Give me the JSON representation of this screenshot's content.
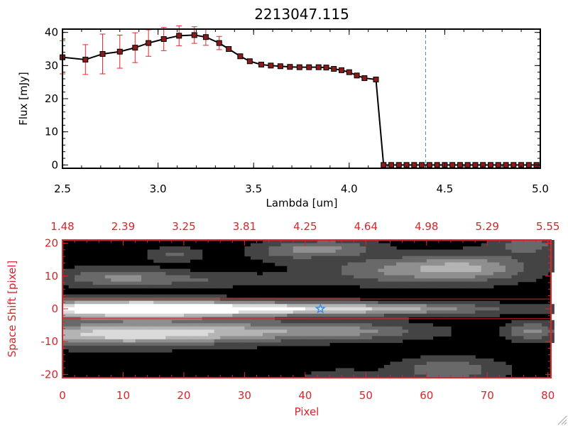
{
  "chart_data": [
    {
      "type": "line",
      "title": "2213047.115",
      "xlabel": "Lambda [um]",
      "ylabel": "Flux [mJy]",
      "xlim": [
        2.5,
        5.0
      ],
      "ylim": [
        -1,
        41
      ],
      "x_ticks": [
        2.5,
        3.0,
        3.5,
        4.0,
        4.5,
        5.0
      ],
      "x_tick_labels": [
        "2.5",
        "3.0",
        "3.5",
        "4.0",
        "4.5",
        "5.0"
      ],
      "y_ticks": [
        0,
        10,
        20,
        30,
        40
      ],
      "y_tick_labels": [
        "0",
        "10",
        "20",
        "30",
        "40"
      ],
      "marker_line_x": 4.4,
      "colors": {
        "line": "#000000",
        "marker": "#8b1a1a",
        "errorbar": "#e0272e",
        "vline": "#4a90d9"
      },
      "series": [
        {
          "x": [
            2.5,
            2.62,
            2.71,
            2.8,
            2.88,
            2.95,
            3.03,
            3.11,
            3.19,
            3.25,
            3.32,
            3.37,
            3.43,
            3.48,
            3.54,
            3.59,
            3.64,
            3.69,
            3.74,
            3.79,
            3.84,
            3.88,
            3.92,
            3.96,
            4.0,
            4.04,
            4.08,
            4.14,
            4.18,
            4.22,
            4.26,
            4.3,
            4.34,
            4.38,
            4.42,
            4.46,
            4.5,
            4.54,
            4.58,
            4.62,
            4.66,
            4.7,
            4.74,
            4.78,
            4.82,
            4.86,
            4.9,
            4.94,
            4.98
          ],
          "y": [
            32.5,
            31.8,
            33.5,
            34.2,
            35.4,
            36.8,
            38.0,
            39.0,
            39.2,
            38.6,
            36.8,
            35.0,
            32.8,
            31.3,
            30.3,
            30.0,
            29.8,
            29.6,
            29.5,
            29.5,
            29.5,
            29.4,
            29.0,
            28.6,
            28.0,
            27.0,
            26.2,
            25.8,
            0,
            0,
            0,
            0,
            0,
            0,
            0,
            0,
            0,
            0,
            0,
            0,
            0,
            0,
            0,
            0,
            0,
            0,
            0,
            0,
            0
          ],
          "yerr": [
            5,
            4.5,
            6,
            5,
            4.5,
            4,
            3.5,
            3.0,
            2.5,
            2.5,
            2.0,
            0,
            0,
            0,
            0,
            0,
            0,
            0,
            0,
            0,
            0,
            0,
            0,
            0,
            0,
            0,
            0,
            0,
            0,
            0,
            0,
            0,
            0,
            0,
            0,
            0,
            0,
            0,
            0,
            0,
            0,
            0,
            0,
            0,
            0,
            0,
            0,
            0,
            0
          ]
        }
      ]
    },
    {
      "type": "heatmap",
      "xlabel": "Pixel",
      "ylabel": "Space Shift [pixel]",
      "xlim": [
        0,
        80.5
      ],
      "ylim": [
        -21,
        21
      ],
      "x_ticks": [
        0,
        10,
        20,
        30,
        40,
        50,
        60,
        70,
        80
      ],
      "x_tick_labels": [
        "0",
        "10",
        "20",
        "30",
        "40",
        "50",
        "60",
        "70",
        "80"
      ],
      "top_ticks": [
        0,
        10,
        20,
        30,
        40,
        50,
        60,
        70,
        80
      ],
      "top_tick_labels": [
        "1.48",
        "2.39",
        "3.25",
        "3.81",
        "4.25",
        "4.64",
        "4.98",
        "5.29",
        "5.55"
      ],
      "y_ticks": [
        -20,
        -10,
        0,
        10,
        20
      ],
      "y_tick_labels": [
        "-20",
        "-10",
        "0",
        "10",
        "20"
      ],
      "aperture_lines_y": [
        3,
        -3
      ],
      "star_marker": {
        "x": 42.5,
        "y": 0,
        "color": "#3b8ee6"
      },
      "colors": {
        "axes": "#d9252b",
        "aperture": "#d9252b"
      },
      "sources": [
        {
          "x": 10,
          "y": 0,
          "sx": 14,
          "sy": 2.0,
          "amp": 1.0
        },
        {
          "x": 32,
          "y": 0,
          "sx": 22,
          "sy": 1.5,
          "amp": 0.55
        },
        {
          "x": 50,
          "y": 0,
          "sx": 16,
          "sy": 1.2,
          "amp": 0.35
        },
        {
          "x": 8,
          "y": -8,
          "sx": 14,
          "sy": 2.5,
          "amp": 0.7
        },
        {
          "x": 30,
          "y": -7,
          "sx": 16,
          "sy": 2.2,
          "amp": 0.45
        },
        {
          "x": 48,
          "y": -7,
          "sx": 8,
          "sy": 1.6,
          "amp": 0.25
        },
        {
          "x": 8,
          "y": 10,
          "sx": 7,
          "sy": 2.0,
          "amp": 0.38
        },
        {
          "x": 22,
          "y": 9,
          "sx": 10,
          "sy": 1.5,
          "amp": 0.22
        },
        {
          "x": 18,
          "y": 17,
          "sx": 3,
          "sy": 1.5,
          "amp": 0.3
        },
        {
          "x": 36,
          "y": 18,
          "sx": 4,
          "sy": 2.0,
          "amp": 0.28
        },
        {
          "x": 44,
          "y": 19,
          "sx": 5,
          "sy": 2.0,
          "amp": 0.4
        },
        {
          "x": 55,
          "y": 12,
          "sx": 10,
          "sy": 3.0,
          "amp": 0.4
        },
        {
          "x": 67,
          "y": 13,
          "sx": 7,
          "sy": 3.0,
          "amp": 0.45
        },
        {
          "x": 76,
          "y": 20,
          "sx": 4,
          "sy": 2.0,
          "amp": 0.35
        },
        {
          "x": 63,
          "y": -19,
          "sx": 6,
          "sy": 2.5,
          "amp": 0.4
        },
        {
          "x": 77,
          "y": -7,
          "sx": 3,
          "sy": 2.0,
          "amp": 0.45
        },
        {
          "x": 45,
          "y": -21,
          "sx": 4,
          "sy": 1.5,
          "amp": 0.2
        }
      ]
    }
  ]
}
